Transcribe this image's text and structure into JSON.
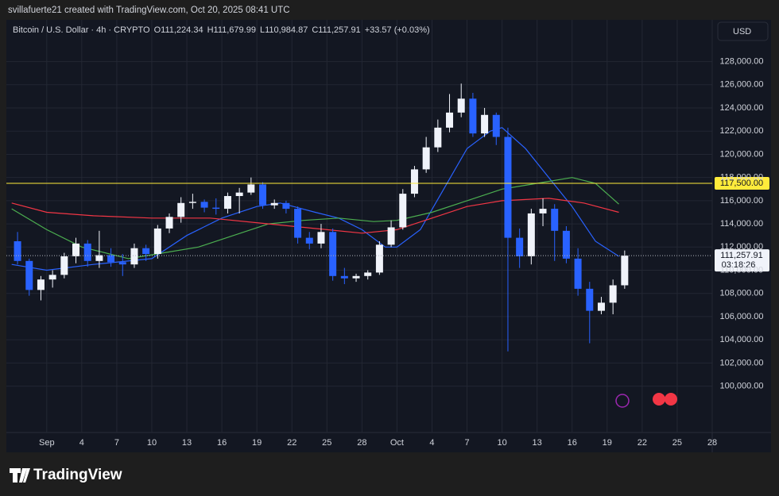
{
  "chart_data": {
    "type": "candlestick",
    "attribution": "svillafuerte21 created with TradingView.com, Oct 20, 2025 08:41 UTC",
    "symbol": "Bitcoin / U.S. Dollar · 4h · CRYPTO",
    "ohlc_legend": [
      "O111,224.34",
      "H111,679.99",
      "L110,984.87",
      "C111,257.91",
      "+33.57 (+0.03%)"
    ],
    "currency": "USD",
    "logo": "TradingView",
    "up_color": "#f0f3fa",
    "down_color": "#2962ff",
    "grid": true,
    "xlim": [
      "2025-08-28T13:00",
      "2025-10-28T00:00"
    ],
    "ylim": [
      96000,
      131600
    ],
    "xticks": [
      {
        "value": "2025-09-01",
        "label": "Sep"
      },
      {
        "value": "2025-09-04",
        "label": "4"
      },
      {
        "value": "2025-09-07",
        "label": "7"
      },
      {
        "value": "2025-09-10",
        "label": "10"
      },
      {
        "value": "2025-09-13",
        "label": "13"
      },
      {
        "value": "2025-09-16",
        "label": "16"
      },
      {
        "value": "2025-09-19",
        "label": "19"
      },
      {
        "value": "2025-09-22",
        "label": "22"
      },
      {
        "value": "2025-09-25",
        "label": "25"
      },
      {
        "value": "2025-09-28",
        "label": "28"
      },
      {
        "value": "2025-10-01",
        "label": "Oct"
      },
      {
        "value": "2025-10-04",
        "label": "4"
      },
      {
        "value": "2025-10-07",
        "label": "7"
      },
      {
        "value": "2025-10-10",
        "label": "10"
      },
      {
        "value": "2025-10-13",
        "label": "13"
      },
      {
        "value": "2025-10-16",
        "label": "16"
      },
      {
        "value": "2025-10-19",
        "label": "19"
      },
      {
        "value": "2025-10-22",
        "label": "22"
      },
      {
        "value": "2025-10-25",
        "label": "25"
      },
      {
        "value": "2025-10-28",
        "label": "28"
      }
    ],
    "yticks": [
      {
        "value": 100000,
        "label": "100,000.00"
      },
      {
        "value": 102000,
        "label": "102,000.00"
      },
      {
        "value": 104000,
        "label": "104,000.00"
      },
      {
        "value": 106000,
        "label": "106,000.00"
      },
      {
        "value": 108000,
        "label": "108,000.00"
      },
      {
        "value": 110000,
        "label": "110,000.00"
      },
      {
        "value": 112000,
        "label": "112,000.00"
      },
      {
        "value": 114000,
        "label": "114,000.00"
      },
      {
        "value": 116000,
        "label": "116,000.00"
      },
      {
        "value": 118000,
        "label": "118,000.00"
      },
      {
        "value": 120000,
        "label": "120,000.00"
      },
      {
        "value": 122000,
        "label": "122,000.00"
      },
      {
        "value": 124000,
        "label": "124,000.00"
      },
      {
        "value": 126000,
        "label": "126,000.00"
      },
      {
        "value": 128000,
        "label": "128,000.00"
      }
    ],
    "x": [
      "2025-08-29",
      "2025-08-30",
      "2025-08-31",
      "2025-09-01",
      "2025-09-02",
      "2025-09-03",
      "2025-09-04",
      "2025-09-05",
      "2025-09-06",
      "2025-09-07",
      "2025-09-08",
      "2025-09-09",
      "2025-09-10",
      "2025-09-11",
      "2025-09-12",
      "2025-09-13",
      "2025-09-14",
      "2025-09-15",
      "2025-09-16",
      "2025-09-17",
      "2025-09-18",
      "2025-09-19",
      "2025-09-20",
      "2025-09-21",
      "2025-09-22",
      "2025-09-23",
      "2025-09-24",
      "2025-09-25",
      "2025-09-26",
      "2025-09-27",
      "2025-09-28",
      "2025-09-29",
      "2025-09-30",
      "2025-10-01",
      "2025-10-02",
      "2025-10-03",
      "2025-10-04",
      "2025-10-05",
      "2025-10-06",
      "2025-10-07",
      "2025-10-08",
      "2025-10-09",
      "2025-10-10",
      "2025-10-11",
      "2025-10-12",
      "2025-10-13",
      "2025-10-14",
      "2025-10-15",
      "2025-10-16",
      "2025-10-17",
      "2025-10-18",
      "2025-10-19",
      "2025-10-20"
    ],
    "open": [
      112500,
      110800,
      108300,
      109200,
      109600,
      111200,
      112300,
      110800,
      111300,
      110700,
      110500,
      111900,
      111400,
      113600,
      114600,
      115800,
      115900,
      115400,
      115300,
      116400,
      116700,
      117400,
      115600,
      115800,
      115300,
      112800,
      112300,
      113300,
      109500,
      109300,
      109500,
      109800,
      112200,
      113700,
      116600,
      118700,
      120600,
      122300,
      123600,
      124800,
      121800,
      123400,
      121500,
      112800,
      111200,
      114900,
      115300,
      113400,
      111000,
      108400,
      106500,
      107200,
      108700
    ],
    "high": [
      113300,
      111000,
      109500,
      110000,
      111500,
      112800,
      112600,
      113400,
      111900,
      111400,
      112300,
      112200,
      113900,
      114900,
      116300,
      116600,
      116100,
      116200,
      116700,
      117100,
      118000,
      117600,
      116100,
      116000,
      115500,
      113300,
      114000,
      113600,
      110200,
      109700,
      110000,
      112500,
      114300,
      117000,
      119000,
      121500,
      123000,
      125200,
      126100,
      125300,
      124000,
      123600,
      122300,
      113600,
      115300,
      116200,
      115700,
      113800,
      111900,
      109000,
      107700,
      109200,
      111700
    ],
    "low": [
      110500,
      107800,
      107400,
      108500,
      109300,
      110600,
      110300,
      110200,
      110300,
      109500,
      110200,
      110800,
      111000,
      113200,
      114100,
      115300,
      115000,
      114800,
      114900,
      114900,
      116500,
      115300,
      115300,
      114900,
      112300,
      111800,
      111900,
      109100,
      108800,
      109000,
      109200,
      109600,
      112000,
      113500,
      116300,
      118400,
      120200,
      121900,
      123200,
      121500,
      121500,
      120800,
      103000,
      110200,
      110500,
      113800,
      110800,
      110600,
      107800,
      103700,
      106200,
      106200,
      108400
    ],
    "close": [
      110800,
      108300,
      109200,
      109600,
      111200,
      112300,
      110800,
      111300,
      110700,
      110500,
      111900,
      111400,
      113600,
      114600,
      115800,
      115900,
      115400,
      115300,
      116400,
      116700,
      117400,
      115600,
      115800,
      115300,
      112800,
      112300,
      113300,
      109500,
      109300,
      109500,
      109800,
      112200,
      113700,
      116600,
      118700,
      120600,
      122300,
      123600,
      124800,
      121800,
      123400,
      121500,
      112800,
      111200,
      114900,
      115300,
      113400,
      111000,
      108400,
      106500,
      107200,
      108700,
      111257.91
    ],
    "lines": [
      {
        "color": "#2962ff",
        "x": [
          "2025-08-29",
          "2025-09-01",
          "2025-09-05",
          "2025-09-10",
          "2025-09-13",
          "2025-09-16",
          "2025-09-19",
          "2025-09-21",
          "2025-09-24",
          "2025-09-26",
          "2025-09-28",
          "2025-09-30",
          "2025-10-01",
          "2025-10-03",
          "2025-10-05",
          "2025-10-07",
          "2025-10-09",
          "2025-10-10",
          "2025-10-12",
          "2025-10-14",
          "2025-10-16",
          "2025-10-18",
          "2025-10-20"
        ],
        "values": [
          110500,
          110000,
          110500,
          111000,
          113000,
          114500,
          115500,
          115800,
          115000,
          114500,
          113500,
          112000,
          112000,
          113500,
          117000,
          120500,
          122000,
          122300,
          120500,
          118000,
          115500,
          112500,
          111200
        ]
      },
      {
        "color": "#4caf50",
        "x": [
          "2025-08-29",
          "2025-09-01",
          "2025-09-04",
          "2025-09-08",
          "2025-09-11",
          "2025-09-14",
          "2025-09-17",
          "2025-09-20",
          "2025-09-23",
          "2025-09-26",
          "2025-09-29",
          "2025-10-01",
          "2025-10-04",
          "2025-10-07",
          "2025-10-10",
          "2025-10-13",
          "2025-10-16",
          "2025-10-18",
          "2025-10-20"
        ],
        "values": [
          115300,
          113500,
          112000,
          111000,
          111500,
          112000,
          113000,
          114000,
          114300,
          114500,
          114200,
          114300,
          115000,
          116000,
          117000,
          117500,
          118000,
          117500,
          115700
        ]
      },
      {
        "color": "#f23645",
        "x": [
          "2025-08-29",
          "2025-09-01",
          "2025-09-05",
          "2025-09-10",
          "2025-09-15",
          "2025-09-20",
          "2025-09-25",
          "2025-09-28",
          "2025-10-01",
          "2025-10-04",
          "2025-10-07",
          "2025-10-10",
          "2025-10-14",
          "2025-10-17",
          "2025-10-20"
        ],
        "values": [
          115800,
          115000,
          114700,
          114500,
          114500,
          114000,
          113500,
          113200,
          113500,
          114500,
          115500,
          116000,
          116200,
          115800,
          115000
        ]
      }
    ],
    "hline": {
      "value": 117500,
      "label": "117,500.00",
      "color": "#ffeb3b"
    },
    "last_price": {
      "value": 111257.91,
      "label": "111,257.91",
      "countdown": "03:18:26"
    }
  }
}
